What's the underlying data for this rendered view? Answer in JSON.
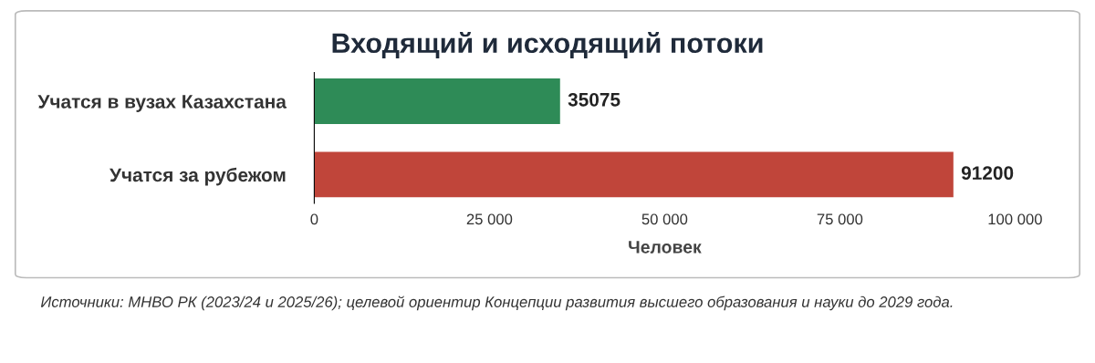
{
  "chart_data": {
    "type": "bar",
    "orientation": "horizontal",
    "title": "Входящий и исходящий потоки",
    "categories": [
      "Учатся в вузах Казахстана",
      "Учатся за рубежом"
    ],
    "values": [
      35075,
      91200
    ],
    "colors": [
      "#2e8b57",
      "#c0453a"
    ],
    "xlim": [
      0,
      100000
    ],
    "xticks": [
      0,
      {
        "value": 25000,
        "label": "25 000"
      },
      {
        "value": 50000,
        "label": "50 000"
      },
      {
        "value": 75000,
        "label": "75 000"
      },
      {
        "value": 100000,
        "label": "100 000"
      }
    ],
    "xlabel": "Человек",
    "data_labels": true,
    "grid": false,
    "legend": false,
    "annotations": [
      "Источники: МНВО РК (2023/24 и 2025/26); целевой ориентир Концепции развития высшего образования и науки до 2029 года."
    ]
  }
}
